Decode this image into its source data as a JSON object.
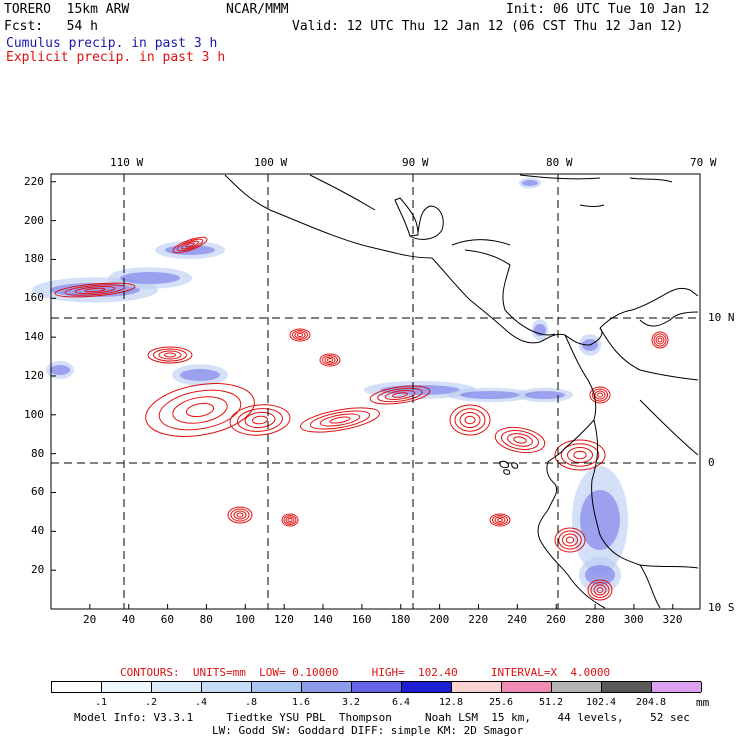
{
  "header": {
    "model": "TORERO  15km ARW",
    "center": "NCAR/MMM",
    "init": "Init: 06 UTC Tue 10 Jan 12",
    "fcst": "Fcst:   54 h",
    "valid": "Valid: 12 UTC Thu 12 Jan 12 (06 CST Thu 12 Jan 12)",
    "legend_cumulus": "Cumulus precip. in past 3 h",
    "legend_explicit": "Explicit precip. in past 3 h"
  },
  "axes": {
    "top_lon": [
      "110 W",
      "100 W",
      "90 W",
      "80 W",
      "70 W"
    ],
    "right_lat": [
      "10 N",
      "0",
      "10 S"
    ],
    "x_ticks": [
      "20",
      "40",
      "60",
      "80",
      "100",
      "120",
      "140",
      "160",
      "180",
      "200",
      "220",
      "240",
      "260",
      "280",
      "300",
      "320"
    ],
    "y_ticks": [
      "20",
      "40",
      "60",
      "80",
      "100",
      "120",
      "140",
      "160",
      "180",
      "200",
      "220"
    ]
  },
  "contour_info": "CONTOURS:  UNITS=mm  LOW= 0.10000     HIGH=  102.40     INTERVAL=X  4.0000",
  "colorbar": {
    "labels": [
      ".1",
      ".2",
      ".4",
      ".8",
      "1.6",
      "3.2",
      "6.4",
      "12.8",
      "25.6",
      "51.2",
      "102.4",
      "204.8"
    ],
    "unit": "mm",
    "colors": [
      "#ffffff",
      "#f0f8ff",
      "#dcecfa",
      "#c4dcf6",
      "#a8c4f0",
      "#8c9ceb",
      "#6464e6",
      "#1e1ed2",
      "#fad2d2",
      "#f08cb4",
      "#b4b4b4",
      "#5a5a5a",
      "#dca0f0"
    ]
  },
  "footer": {
    "line1": "Model Info: V3.3.1     Tiedtke YSU PBL  Thompson     Noah LSM  15 km,    44 levels,    52 sec",
    "line2": "LW: Godd SW: Goddard DIFF: simple KM: 2D Smagor"
  }
}
